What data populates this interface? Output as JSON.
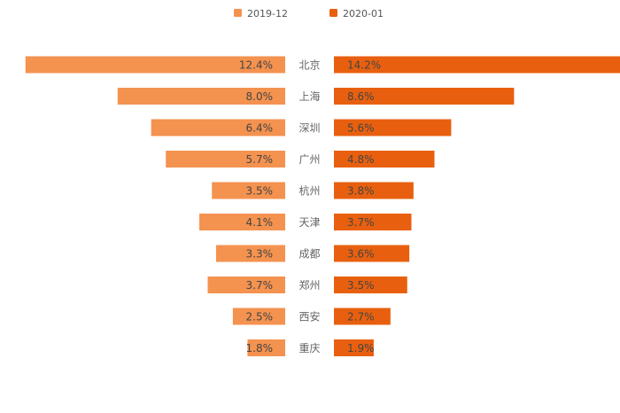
{
  "chart_data": {
    "type": "bar",
    "orientation": "horizontal-butterfly",
    "categories": [
      "北京",
      "上海",
      "深圳",
      "广州",
      "杭州",
      "天津",
      "成都",
      "郑州",
      "西安",
      "重庆"
    ],
    "series": [
      {
        "name": "2019-12",
        "color": "#F4924F",
        "side": "left",
        "values": [
          12.4,
          8.0,
          6.4,
          5.7,
          3.5,
          4.1,
          3.3,
          3.7,
          2.5,
          1.8
        ],
        "labels": [
          "12.4%",
          "8.0%",
          "6.4%",
          "5.7%",
          "3.5%",
          "4.1%",
          "3.3%",
          "3.7%",
          "2.5%",
          "1.8%"
        ]
      },
      {
        "name": "2020-01",
        "color": "#E8600F",
        "side": "right",
        "values": [
          14.2,
          8.6,
          5.6,
          4.8,
          3.8,
          3.7,
          3.6,
          3.5,
          2.7,
          1.9
        ],
        "labels": [
          "14.2%",
          "8.6%",
          "5.6%",
          "4.8%",
          "3.8%",
          "3.7%",
          "3.6%",
          "3.5%",
          "2.7%",
          "1.9%"
        ]
      }
    ],
    "legend_position": "top-center",
    "grid": false,
    "value_unit": "%"
  }
}
